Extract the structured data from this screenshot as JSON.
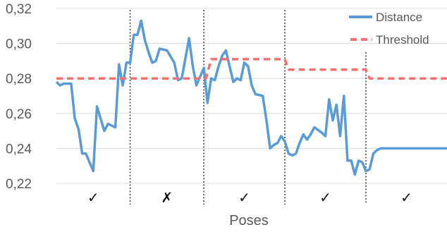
{
  "chart_data": {
    "type": "line",
    "xlabel": "Poses",
    "ylabel": "",
    "title": "",
    "ylim": [
      0.22,
      0.32
    ],
    "yticks": [
      "0,22",
      "0,24",
      "0,26",
      "0,28",
      "0,30",
      "0,32"
    ],
    "grid": true,
    "legend": "top-right",
    "colors": {
      "distance": "#5b9bd5",
      "threshold": "#f4716f",
      "separator": "#444444",
      "grid": "#dcdcdc",
      "text": "#595959"
    },
    "separators": [
      10,
      20,
      31,
      42
    ],
    "segment_marks": [
      "✓",
      "✗",
      "✓",
      "✓",
      "✓"
    ],
    "series": [
      {
        "name": "Distance",
        "x": [
          0,
          0.5,
          1,
          2,
          2.5,
          3,
          3.5,
          4,
          5,
          5.5,
          6,
          6.5,
          7,
          8,
          8.5,
          9,
          9.5,
          10,
          10.5,
          11,
          11.5,
          12,
          12.5,
          13,
          13.5,
          14,
          15,
          16,
          16.5,
          17,
          18,
          18.5,
          19,
          20,
          20.5,
          21,
          21.5,
          22,
          22.5,
          23,
          23.5,
          24,
          24.5,
          25,
          25.5,
          26,
          26.5,
          27,
          28,
          28.5,
          29,
          29.5,
          30,
          30.5,
          31,
          31.5,
          32,
          32.5,
          33,
          33.5,
          34,
          34.5,
          35,
          36,
          36.5,
          37,
          37.5,
          38,
          38.5,
          39,
          39.5,
          40,
          40.5,
          41,
          41.5,
          42,
          42.5,
          43,
          43.5,
          44,
          44.5,
          45,
          45.5,
          46,
          46.5,
          47,
          47.5,
          48,
          48.5,
          49,
          49.5,
          50,
          50.5,
          51,
          51.5,
          52,
          52.5,
          53
        ],
        "y": [
          0.278,
          0.276,
          0.277,
          0.277,
          0.257,
          0.251,
          0.237,
          0.237,
          0.227,
          0.264,
          0.257,
          0.25,
          0.254,
          0.252,
          0.288,
          0.276,
          0.289,
          0.289,
          0.305,
          0.305,
          0.313,
          0.302,
          0.295,
          0.289,
          0.29,
          0.297,
          0.296,
          0.289,
          0.279,
          0.28,
          0.303,
          0.287,
          0.276,
          0.286,
          0.266,
          0.28,
          0.279,
          0.287,
          0.293,
          0.296,
          0.287,
          0.278,
          0.28,
          0.279,
          0.289,
          0.287,
          0.276,
          0.271,
          0.27,
          0.256,
          0.24,
          0.242,
          0.243,
          0.247,
          0.244,
          0.237,
          0.236,
          0.237,
          0.243,
          0.248,
          0.245,
          0.248,
          0.252,
          0.249,
          0.247,
          0.268,
          0.256,
          0.265,
          0.247,
          0.27,
          0.233,
          0.233,
          0.225,
          0.233,
          0.232,
          0.227,
          0.228,
          0.237,
          0.239,
          0.24,
          0.24,
          0.24,
          0.24,
          0.24,
          0.24,
          0.24,
          0.24,
          0.24,
          0.24,
          0.24,
          0.24,
          0.24,
          0.24,
          0.24,
          0.24,
          0.24,
          0.24,
          0.24
        ]
      },
      {
        "name": "Threshold",
        "x": [
          0,
          20.3,
          21,
          31,
          31.5,
          42,
          42.5,
          53
        ],
        "y": [
          0.28,
          0.28,
          0.291,
          0.291,
          0.285,
          0.285,
          0.28,
          0.28
        ]
      }
    ]
  }
}
